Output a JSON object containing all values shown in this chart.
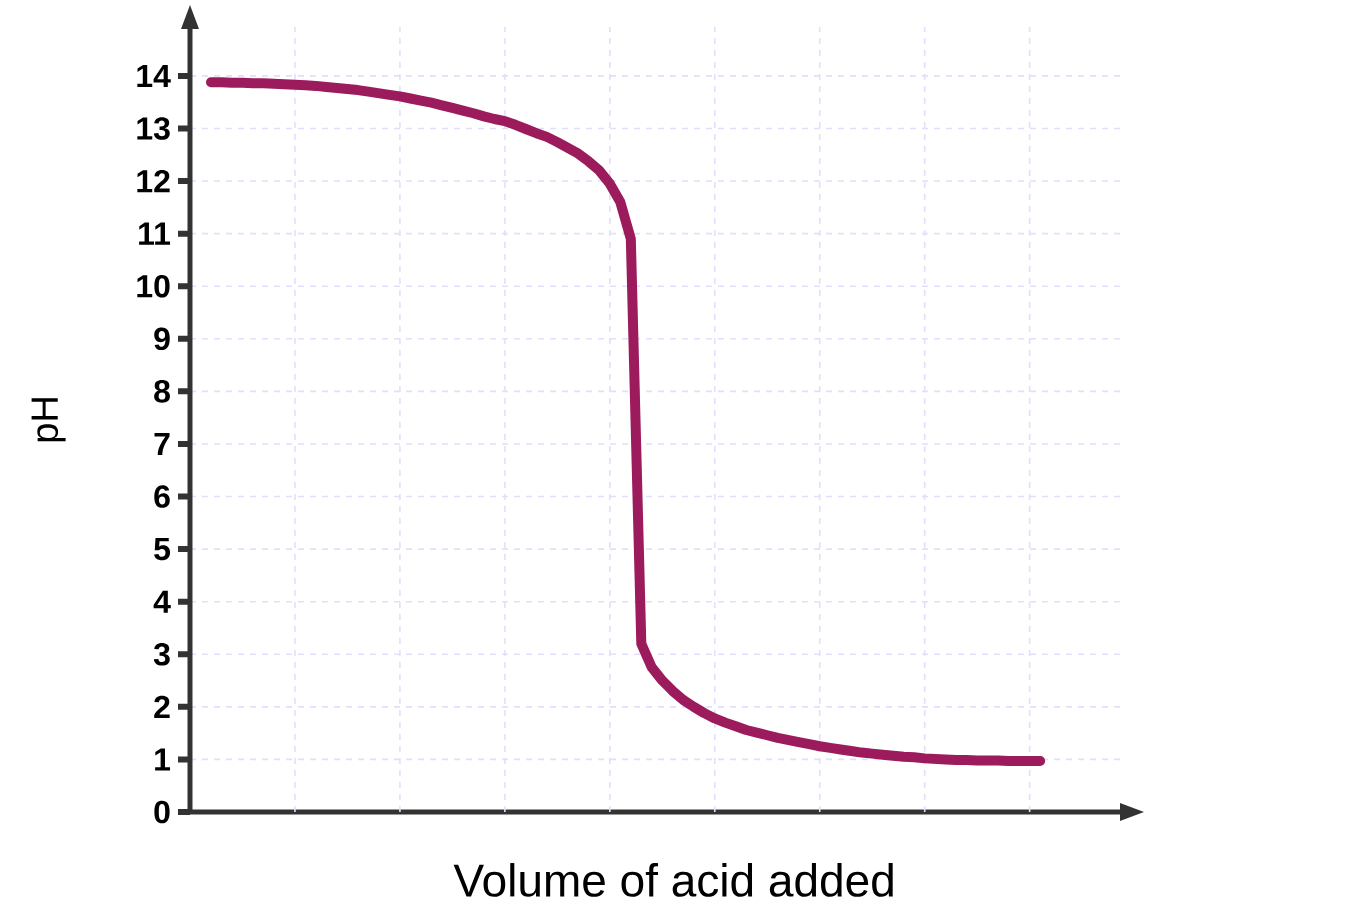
{
  "chart_data": {
    "type": "line",
    "xlabel": "Volume of acid added",
    "ylabel": "pH",
    "categories": [
      null,
      null,
      null,
      null,
      null,
      null,
      null,
      null,
      null,
      null,
      null,
      null,
      null,
      null,
      null,
      null,
      null,
      null,
      null,
      null,
      null,
      null,
      null,
      null,
      null,
      null,
      null,
      null,
      null,
      null,
      null,
      null,
      null,
      null,
      null,
      null,
      null,
      null,
      null,
      null,
      null,
      null,
      null,
      null,
      null,
      null,
      null,
      null,
      null,
      null,
      null,
      null,
      null,
      null,
      null,
      null,
      null,
      null,
      null,
      null,
      null,
      null,
      null,
      null,
      null,
      null,
      null,
      null,
      null,
      null,
      null,
      null,
      null,
      null,
      null,
      null,
      null,
      null,
      null,
      null
    ],
    "series": [
      {
        "color": "#9c1b5c",
        "values": [
          13.88,
          13.88,
          13.87,
          13.87,
          13.86,
          13.86,
          13.85,
          13.84,
          13.83,
          13.82,
          13.81,
          13.79,
          13.77,
          13.75,
          13.73,
          13.7,
          13.67,
          13.64,
          13.61,
          13.57,
          13.53,
          13.49,
          13.44,
          13.39,
          13.34,
          13.29,
          13.23,
          13.18,
          13.14,
          13.07,
          12.99,
          12.91,
          12.84,
          12.74,
          12.63,
          12.52,
          12.37,
          12.2,
          11.95,
          11.6,
          10.9,
          3.2,
          2.75,
          2.5,
          2.3,
          2.13,
          2.0,
          1.88,
          1.78,
          1.7,
          1.63,
          1.56,
          1.51,
          1.46,
          1.41,
          1.37,
          1.33,
          1.29,
          1.25,
          1.22,
          1.19,
          1.16,
          1.13,
          1.11,
          1.09,
          1.07,
          1.05,
          1.04,
          1.02,
          1.01,
          1.0,
          0.99,
          0.99,
          0.98,
          0.98,
          0.98,
          0.97,
          0.97,
          0.97,
          0.97
        ]
      }
    ],
    "ylim": [
      0,
      14.93
    ],
    "yticks": [
      0,
      1,
      2,
      3,
      4,
      5,
      6,
      7,
      8,
      9,
      10,
      11,
      12,
      13,
      14
    ],
    "tick_labels": "y",
    "grid": true,
    "marker": "none",
    "line_style": "solid"
  }
}
